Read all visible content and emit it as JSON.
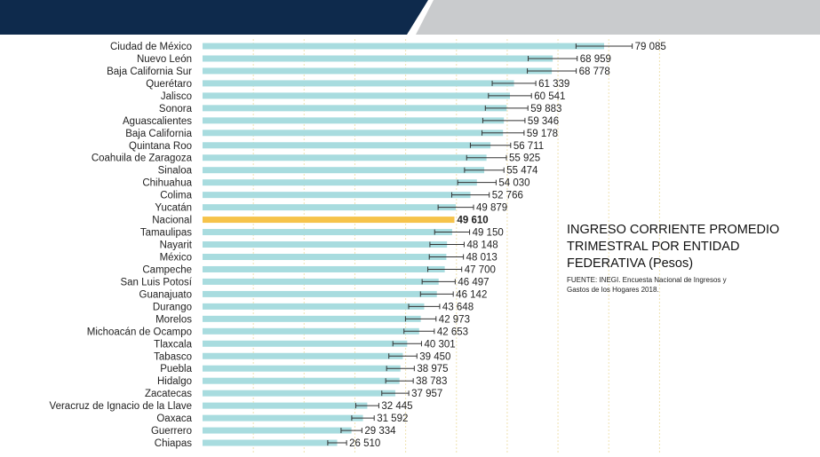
{
  "colors": {
    "bar": "#a8dcdf",
    "highlight": "#f6c34a",
    "banner_dark": "#0e2a4c",
    "banner_light": "#c9cbcd",
    "gridline": "#efe2b0"
  },
  "chart_data": {
    "type": "bar",
    "orientation": "horizontal",
    "title": "INGRESO CORRIENTE PROMEDIO TRIMESTRAL POR ENTIDAD FEDERATIVA (Pesos)",
    "source": "FUENTE: INEGI. Encuesta Nacional de Ingresos y Gastos de los Hogares 2018.",
    "xlim": [
      0,
      90000
    ],
    "grid": true,
    "highlight_category": "Nacional",
    "categories": [
      "Ciudad de México",
      "Nuevo León",
      "Baja California Sur",
      "Querétaro",
      "Jalisco",
      "Sonora",
      "Aguascalientes",
      "Baja California",
      "Quintana Roo",
      "Coahuila de Zaragoza",
      "Sinaloa",
      "Chihuahua",
      "Colima",
      "Yucatán",
      "Nacional",
      "Tamaulipas",
      "Nayarit",
      "México",
      "Campeche",
      "San Luis Potosí",
      "Guanajuato",
      "Durango",
      "Morelos",
      "Michoacán de Ocampo",
      "Tlaxcala",
      "Tabasco",
      "Puebla",
      "Hidalgo",
      "Zacatecas",
      "Veracruz de Ignacio de la Llave",
      "Oaxaca",
      "Guerrero",
      "Chiapas"
    ],
    "values": [
      79085,
      68959,
      68778,
      61339,
      60541,
      59883,
      59346,
      59178,
      56711,
      55925,
      55474,
      54030,
      52766,
      49879,
      49610,
      49150,
      48148,
      48013,
      47700,
      46497,
      46142,
      43648,
      42973,
      42653,
      40301,
      39450,
      38975,
      38783,
      37957,
      32445,
      31592,
      29334,
      26510
    ],
    "value_labels": [
      "79 085",
      "68 959",
      "68 778",
      "61 339",
      "60 541",
      "59 883",
      "59 346",
      "59 178",
      "56 711",
      "55 925",
      "55 474",
      "54 030",
      "52 766",
      "49 879",
      "49 610",
      "49 150",
      "48 148",
      "48 013",
      "47 700",
      "46 497",
      "46 142",
      "43 648",
      "42 973",
      "42 653",
      "40 301",
      "39 450",
      "38 975",
      "38 783",
      "37 957",
      "32 445",
      "31 592",
      "29 334",
      "26 510"
    ]
  }
}
